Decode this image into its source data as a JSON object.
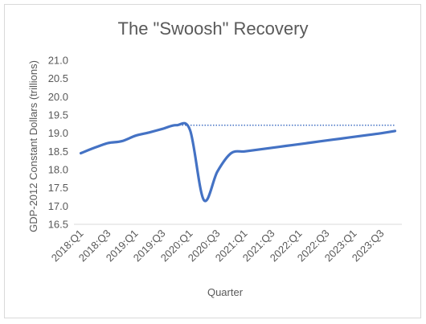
{
  "chart_data": {
    "type": "line",
    "title": "The \"Swoosh\" Recovery",
    "xlabel": "Quarter",
    "ylabel": "GDP-2012 Constant Dollars (trillions)",
    "ylim": [
      16.5,
      21.0
    ],
    "ytick_step": 0.5,
    "y_tick_labels": [
      "16.5",
      "17.0",
      "17.5",
      "18.0",
      "18.5",
      "19.0",
      "19.5",
      "20.0",
      "20.5",
      "21.0"
    ],
    "x": [
      "2018:Q1",
      "2018:Q2",
      "2018:Q3",
      "2018:Q4",
      "2019:Q1",
      "2019:Q2",
      "2019:Q3",
      "2019:Q4",
      "2020:Q1",
      "2020:Q2",
      "2020:Q3",
      "2020:Q4",
      "2021:Q1",
      "2021:Q2",
      "2021:Q3",
      "2021:Q4",
      "2022:Q1",
      "2022:Q2",
      "2022:Q3",
      "2022:Q4",
      "2023:Q1",
      "2023:Q2",
      "2023:Q3",
      "2023:Q4"
    ],
    "x_tick_labels": [
      "2018:Q1",
      "2018:Q3",
      "2019:Q1",
      "2019:Q3",
      "2020:Q1",
      "2020:Q3",
      "2021:Q1",
      "2021:Q3",
      "2022:Q1",
      "2022:Q3",
      "2023:Q1",
      "2023:Q3"
    ],
    "series": [
      {
        "style": "solid",
        "color": "#4472C4",
        "values": [
          18.45,
          18.6,
          18.73,
          18.78,
          18.93,
          19.02,
          19.12,
          19.22,
          19.08,
          17.17,
          17.95,
          18.45,
          18.5,
          18.55,
          18.6,
          18.65,
          18.7,
          18.75,
          18.8,
          18.85,
          18.9,
          18.95,
          19.0,
          19.06
        ]
      },
      {
        "style": "dotted",
        "color": "#4472C4",
        "values": [
          null,
          null,
          null,
          null,
          null,
          null,
          null,
          19.22,
          19.22,
          19.22,
          19.22,
          19.22,
          19.22,
          19.22,
          19.22,
          19.22,
          19.22,
          19.22,
          19.22,
          19.22,
          19.22,
          19.22,
          19.22,
          19.22
        ]
      }
    ],
    "grid": false,
    "legend": "none"
  }
}
